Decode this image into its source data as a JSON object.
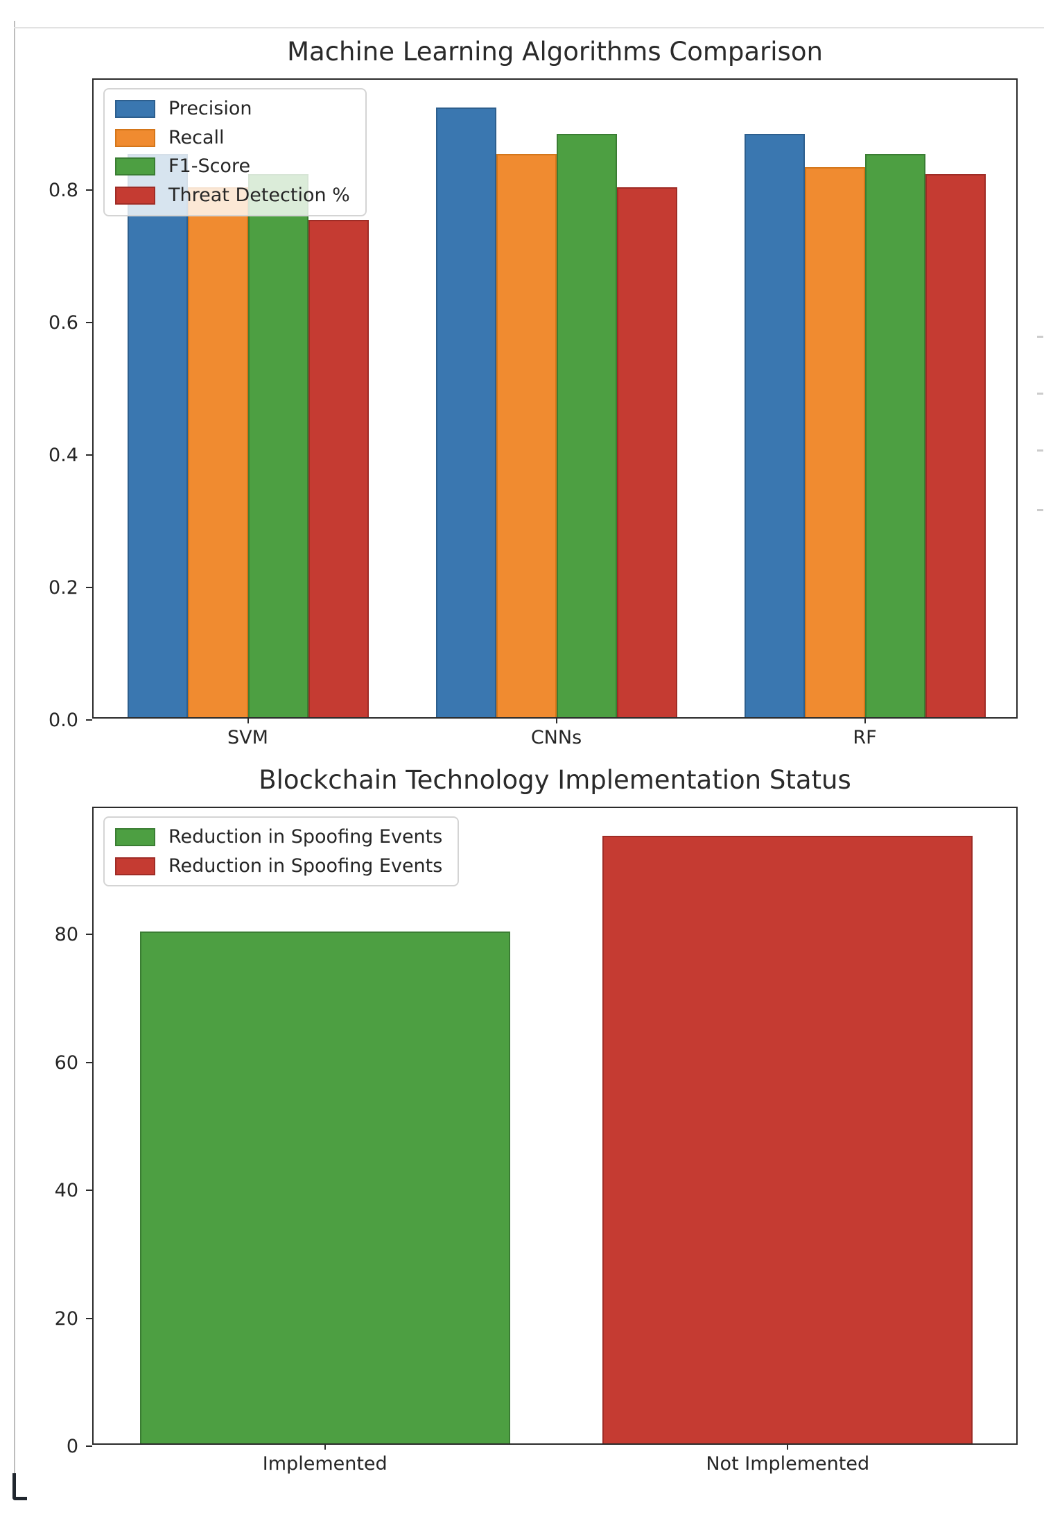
{
  "figure": {
    "background": "#ffffff",
    "text_color": "#262626",
    "spine_color": "#2b2b2b"
  },
  "chart_data": [
    {
      "type": "bar",
      "title": "Machine Learning Algorithms Comparison",
      "categories": [
        "SVM",
        "CNNs",
        "RF"
      ],
      "series": [
        {
          "name": "Precision",
          "color": "#3a77b0",
          "edge": "#2d5f8e",
          "values": [
            0.85,
            0.92,
            0.88
          ]
        },
        {
          "name": "Recall",
          "color": "#f08b30",
          "edge": "#d4761a",
          "values": [
            0.8,
            0.85,
            0.83
          ]
        },
        {
          "name": "F1-Score",
          "color": "#4d9f42",
          "edge": "#3a7d33",
          "values": [
            0.82,
            0.88,
            0.85
          ]
        },
        {
          "name": "Threat Detection %",
          "color": "#c53b32",
          "edge": "#9f2c26",
          "values": [
            0.75,
            0.8,
            0.82
          ]
        }
      ],
      "legend": [
        {
          "label": "Precision",
          "color": "#3a77b0",
          "edge": "#2d5f8e"
        },
        {
          "label": "Recall",
          "color": "#f08b30",
          "edge": "#d4761a"
        },
        {
          "label": "F1-Score",
          "color": "#4d9f42",
          "edge": "#3a7d33"
        },
        {
          "label": "Threat Detection %",
          "color": "#c53b32",
          "edge": "#9f2c26"
        }
      ],
      "legend_position": "upper-left",
      "xlabel": "",
      "ylabel": "",
      "grid": false,
      "yticks": [
        0.0,
        0.2,
        0.4,
        0.6,
        0.8
      ],
      "ytick_labels": [
        "0.0",
        "0.2",
        "0.4",
        "0.6",
        "0.8"
      ],
      "ylim": [
        0,
        0.966
      ]
    },
    {
      "type": "bar",
      "title": "Blockchain Technology Implementation Status",
      "categories": [
        "Implemented",
        "Not Implemented"
      ],
      "values": [
        80,
        95
      ],
      "bar_colors": [
        "#4d9f42",
        "#c53b32"
      ],
      "bar_edge_colors": [
        "#3a7d33",
        "#9f2c26"
      ],
      "legend": [
        {
          "label": "Reduction in Spoofing Events",
          "color": "#4d9f42",
          "edge": "#3a7d33"
        },
        {
          "label": "Reduction in Spoofing Events",
          "color": "#c53b32",
          "edge": "#9f2c26"
        }
      ],
      "legend_position": "upper-left",
      "xlabel": "",
      "ylabel": "",
      "grid": false,
      "yticks": [
        0,
        20,
        40,
        60,
        80
      ],
      "ytick_labels": [
        "0",
        "20",
        "40",
        "60",
        "80"
      ],
      "ylim": [
        0,
        99.75
      ]
    }
  ]
}
